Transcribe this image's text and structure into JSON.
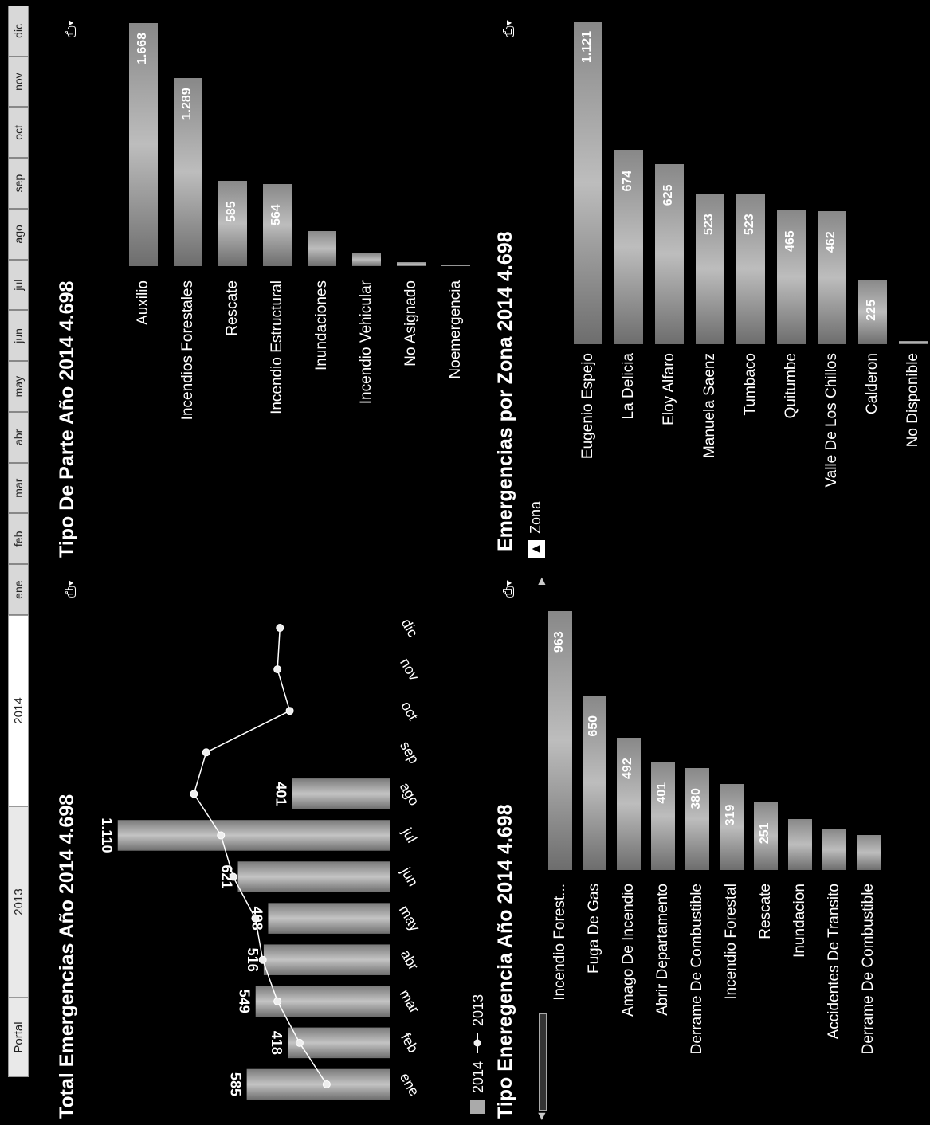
{
  "tabs": {
    "portal": "Portal",
    "years": [
      "2013",
      "2014"
    ],
    "months": [
      "ene",
      "feb",
      "mar",
      "abr",
      "may",
      "jun",
      "jul",
      "ago",
      "sep",
      "oct",
      "nov",
      "dic"
    ]
  },
  "colors": {
    "background": "#000000",
    "bar": "#a8a8a8",
    "line": "#ffffff"
  },
  "icons": {
    "export": "export-excel-icon",
    "scroll_up": "arrow-up-icon",
    "scroll_down": "arrow-down-icon",
    "drill_up": "drill-up-icon"
  },
  "panels": {
    "total": {
      "title": "Total Emergencias Año 2014 4.698"
    },
    "tipo_parte": {
      "title": "Tipo De Parte Año 2014 4.698"
    },
    "tipo_emergencia": {
      "title": "Tipo Eneregencia Año 2014 4.698"
    },
    "zona": {
      "title": "Emergencias por Zona 2014 4.698",
      "drill_label": "Zona"
    }
  },
  "chart_data": [
    {
      "type": "bar",
      "title": "Total Emergencias Año 2014 4.698",
      "categories": [
        "ene",
        "feb",
        "mar",
        "abr",
        "may",
        "jun",
        "jul",
        "ago",
        "sep",
        "oct",
        "nov",
        "dic"
      ],
      "series": [
        {
          "name": "2014",
          "type": "bar",
          "values": [
            585,
            418,
            549,
            516,
            498,
            621,
            1110,
            401,
            null,
            null,
            null,
            null
          ],
          "labels": [
            "585",
            "418",
            "549",
            "516",
            "498",
            "621",
            "1.110",
            "401",
            "",
            "",
            "",
            ""
          ]
        },
        {
          "name": "2013",
          "type": "line",
          "values": [
            260,
            370,
            460,
            520,
            550,
            640,
            690,
            800,
            750,
            410,
            460,
            450
          ]
        }
      ],
      "legend": "bottom"
    },
    {
      "type": "bar",
      "title": "Tipo De Parte Año 2014 4.698",
      "orientation": "horizontal",
      "categories": [
        "Auxilio",
        "Incendios Forestales",
        "Rescate",
        "Incendio Estructural",
        "Inundaciones",
        "Incendio Vehicular",
        "No Asignado",
        "Noemergencia"
      ],
      "values": [
        1668,
        1289,
        585,
        564,
        240,
        90,
        30,
        5
      ],
      "labels": [
        "1.668",
        "1.289",
        "585",
        "564",
        "",
        "",
        "",
        ""
      ]
    },
    {
      "type": "bar",
      "title": "Tipo Eneregencia Año 2014 4.698",
      "orientation": "horizontal",
      "categories": [
        "Incendio Forest...",
        "Fuga De Gas",
        "Amago De Incendio",
        "Abrir Departamento",
        "Derrame De Combustible",
        "Incendio Forestal",
        "Rescate",
        "Inundacion",
        "Accidentes De Transito",
        "Derrame De Combustible"
      ],
      "values": [
        963,
        650,
        492,
        401,
        380,
        319,
        251,
        190,
        150,
        130
      ],
      "labels": [
        "963",
        "650",
        "492",
        "401",
        "380",
        "319",
        "251",
        "",
        "",
        ""
      ]
    },
    {
      "type": "bar",
      "title": "Emergencias por Zona 2014 4.698",
      "orientation": "horizontal",
      "categories": [
        "Eugenio Espejo",
        "La Delicia",
        "Eloy Alfaro",
        "Manuela Saenz",
        "Tumbaco",
        "Quitumbe",
        "Valle De Los Chillos",
        "Calderon",
        "No Disponible"
      ],
      "values": [
        1121,
        674,
        625,
        523,
        523,
        465,
        462,
        225,
        10
      ],
      "labels": [
        "1.121",
        "674",
        "625",
        "523",
        "523",
        "465",
        "462",
        "225",
        ""
      ]
    }
  ]
}
